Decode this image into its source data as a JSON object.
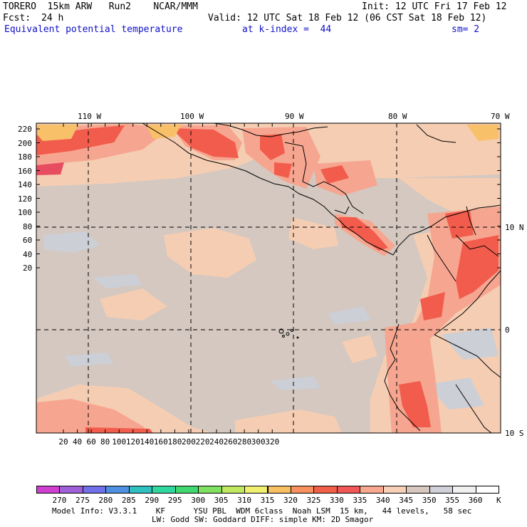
{
  "header": {
    "model": "TORERO  15km ARW   Run2    NCAR/MMM",
    "init": "Init: 12 UTC Fri 17 Feb 12",
    "fcst_label": "Fcst:",
    "fcst_value": "24 h",
    "valid": "Valid: 12 UTC Sat 18 Feb 12 (06 CST Sat 18 Feb 12)",
    "field": "Equivalent potential temperature",
    "level": "at k-index =  44",
    "smoothing": "sm= 2"
  },
  "map": {
    "lon_labels": [
      "110 W",
      "100 W",
      "90 W",
      "80 W",
      "70 W"
    ],
    "lat_labels": [
      "10 N",
      "0",
      "10 S"
    ],
    "y_ticks": [
      "220",
      "200",
      "180",
      "160",
      "140",
      "120",
      "100",
      "80",
      "60",
      "40",
      "20"
    ],
    "x_ticks": [
      "20",
      "40",
      "60",
      "80",
      "100",
      "120",
      "140",
      "160",
      "180",
      "200",
      "220",
      "240",
      "260",
      "280",
      "300",
      "320"
    ]
  },
  "colorbar": {
    "values": [
      "270",
      "275",
      "280",
      "285",
      "290",
      "295",
      "300",
      "305",
      "310",
      "315",
      "320",
      "325",
      "330",
      "335",
      "340",
      "345",
      "350",
      "355",
      "360"
    ],
    "unit": "K",
    "colors": [
      "#d040d0",
      "#a060d8",
      "#7070e8",
      "#5090e0",
      "#30c0c0",
      "#30d8a0",
      "#40d870",
      "#80e060",
      "#c0e860",
      "#f0f070",
      "#f8c060",
      "#f89060",
      "#f06048",
      "#f05858",
      "#f8a890",
      "#f8d0b8",
      "#d8c8c0",
      "#d0d0d8",
      "#f0f0f0",
      "#ffffff"
    ]
  },
  "footer": {
    "line1": "Model Info: V3.3.1    KF      YSU PBL  WDM 6class  Noah LSM  15 km,   44 levels,   58 sec",
    "line2": "LW: Godd SW: Goddard DIFF: simple KM: 2D Smagor"
  }
}
